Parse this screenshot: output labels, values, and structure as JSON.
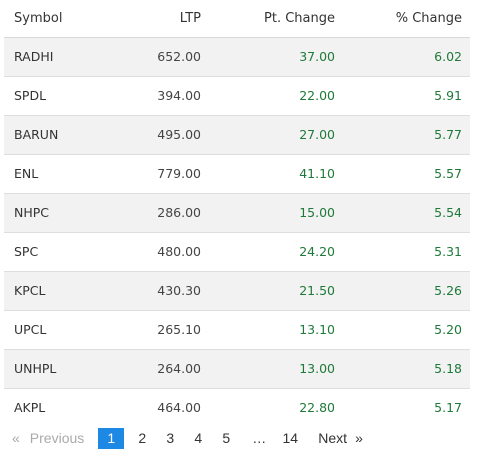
{
  "table": {
    "headers": {
      "symbol": "Symbol",
      "ltp": "LTP",
      "pt_change": "Pt. Change",
      "pct_change": "% Change"
    },
    "rows": [
      {
        "symbol": "RADHI",
        "ltp": "652.00",
        "pt": "37.00",
        "pct": "6.02"
      },
      {
        "symbol": "SPDL",
        "ltp": "394.00",
        "pt": "22.00",
        "pct": "5.91"
      },
      {
        "symbol": "BARUN",
        "ltp": "495.00",
        "pt": "27.00",
        "pct": "5.77"
      },
      {
        "symbol": "ENL",
        "ltp": "779.00",
        "pt": "41.10",
        "pct": "5.57"
      },
      {
        "symbol": "NHPC",
        "ltp": "286.00",
        "pt": "15.00",
        "pct": "5.54"
      },
      {
        "symbol": "SPC",
        "ltp": "480.00",
        "pt": "24.20",
        "pct": "5.31"
      },
      {
        "symbol": "KPCL",
        "ltp": "430.30",
        "pt": "21.50",
        "pct": "5.26"
      },
      {
        "symbol": "UPCL",
        "ltp": "265.10",
        "pt": "13.10",
        "pct": "5.20"
      },
      {
        "symbol": "UNHPL",
        "ltp": "264.00",
        "pt": "13.00",
        "pct": "5.18"
      },
      {
        "symbol": "AKPL",
        "ltp": "464.00",
        "pt": "22.80",
        "pct": "5.17"
      }
    ]
  },
  "pagination": {
    "prev_arrow": "«",
    "prev_label": "Previous",
    "pages": [
      "1",
      "2",
      "3",
      "4",
      "5"
    ],
    "active_page": "1",
    "ellipsis": "…",
    "last_page": "14",
    "next_label": "Next",
    "next_arrow": "»"
  },
  "colors": {
    "positive": "#1f7a3a",
    "active_page_bg": "#1e88e5",
    "stripe": "#f2f2f2"
  }
}
